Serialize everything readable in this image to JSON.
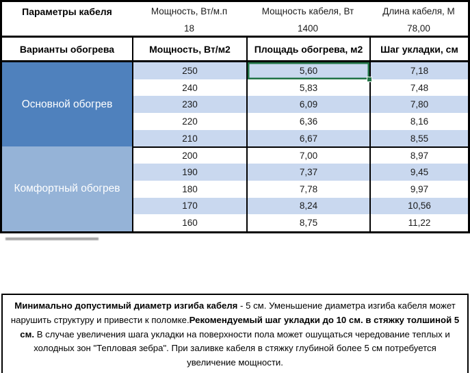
{
  "params": {
    "title": "Параметры кабеля",
    "cols": [
      "Мощность, Вт/м.п",
      "Мощность кабеля, Вт",
      "Длина кабеля, М"
    ],
    "values": [
      "18",
      "1400",
      "78,00"
    ]
  },
  "header": {
    "cols": [
      "Варианты обогрева",
      "Мощность, Вт/м2",
      "Площадь обогрева, м2",
      "Шаг укладки, см"
    ]
  },
  "groups": [
    {
      "label": "Основной обогрев",
      "rows": [
        {
          "power": "250",
          "area": "5,60",
          "step": "7,18"
        },
        {
          "power": "240",
          "area": "5,83",
          "step": "7,48"
        },
        {
          "power": "230",
          "area": "6,09",
          "step": "7,80"
        },
        {
          "power": "220",
          "area": "6,36",
          "step": "8,16"
        },
        {
          "power": "210",
          "area": "6,67",
          "step": "8,55"
        }
      ]
    },
    {
      "label": "Комфортный обогрев",
      "rows": [
        {
          "power": "200",
          "area": "7,00",
          "step": "8,97"
        },
        {
          "power": "190",
          "area": "7,37",
          "step": "9,45"
        },
        {
          "power": "180",
          "area": "7,78",
          "step": "9,97"
        },
        {
          "power": "170",
          "area": "8,24",
          "step": "10,56"
        },
        {
          "power": "160",
          "area": "8,75",
          "step": "11,22"
        }
      ]
    }
  ],
  "selection": {
    "group": 0,
    "row": 0,
    "column": "Площадь обогрева, м2",
    "value": "5,60"
  },
  "note": {
    "bold1": "Минимально допустимый диаметр изгиба кабеля",
    "text1": " - 5 см.  Уменьшение диаметра изгиба кабеля может нарушить структуру и привести к поломке.",
    "bold2": "Рекомендуемый шаг укладки до 10 см. в стяжку толшиной 5 см.",
    "text2": " В  случае увеличения шага укладки на поверхности пола может ошущаться чередование теплых и холодных зон \"Тепловая зебра\". При заливке кабеля в стяжку глубиной более 5 см потребуется увеличение мощности."
  },
  "colors": {
    "band_blue": "#c9d8ef",
    "group_main": "#4f81bd",
    "group_comfort": "#95b3d7",
    "selection_green": "#217346"
  }
}
